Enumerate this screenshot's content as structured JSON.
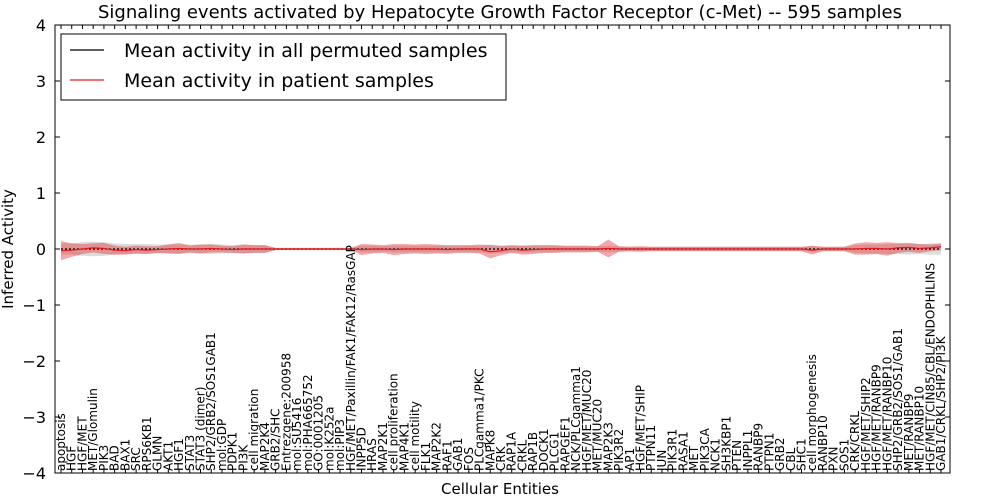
{
  "chart_data": {
    "type": "line",
    "title": "Signaling events activated by Hepatocyte Growth Factor Receptor (c-Met) -- 595 samples",
    "xlabel": "Cellular Entities",
    "ylabel": "Inferred Activity",
    "ylim": [
      -4,
      4
    ],
    "yticks": [
      "4",
      "3",
      "2",
      "1",
      "0",
      "−1",
      "−2",
      "−3",
      "−4"
    ],
    "ytick_values": [
      4,
      3,
      2,
      1,
      0,
      -1,
      -2,
      -3,
      -4
    ],
    "legend": {
      "position": "top-left",
      "entries": [
        {
          "label": "Mean activity in all permuted samples",
          "color": "#000000"
        },
        {
          "label": "Mean activity in patient samples",
          "color": "#e31a1c"
        }
      ]
    },
    "categories": [
      "apoptosis",
      "HGF",
      "HGF/MET",
      "MET/Glomulin",
      "PIK3",
      "BAD",
      "BAX1",
      "SRC",
      "RPS6KB1",
      "GLMN",
      "AKT1",
      "HGF1",
      "STAT3",
      "STAT3 (dimer)",
      "SHP2/GRB2/SOS1GAB1",
      "mol:GDP",
      "PDPK1",
      "PI3K",
      "cell migration",
      "MAP2K4",
      "GRB2/SHC",
      "Entrezgene:200958",
      "mol:SU5416",
      "mol:PHA665752",
      "GO:0001205",
      "mol:K252a",
      "mol:PIP3",
      "HGF/MET/Paxillin/FAK1/FAK12/RasGAP",
      "INPP5D",
      "HRAS",
      "MAP2K1",
      "cell proliferation",
      "MAP4K1",
      "cell motility",
      "FLK1",
      "MAP2K2",
      "RAF1",
      "GAB1",
      "FOS",
      "PLCgamma1/PKC",
      "MAPK8",
      "CRK",
      "RAP1A",
      "CRKL",
      "RAP1B",
      "DOCK1",
      "PLCG1",
      "RAPGEF1",
      "NCK/PLCgamma1",
      "HGF/MET/MUC20",
      "MET/MUC20",
      "MAP2K3",
      "PIK3R2",
      "AP1",
      "HGF/MET/SHIP",
      "PTPN11",
      "JUN",
      "PIK3R1",
      "RASA1",
      "MET",
      "PIK3CA",
      "NCK1",
      "SH3KBP1",
      "PTEN",
      "INPPL1",
      "RANBP9",
      "PTPN1",
      "GRB2",
      "CBL",
      "SHC1",
      "cell morphogenesis",
      "RANBP10",
      "PXN",
      "SOS1",
      "CRK/CRKL",
      "HGF/MET/SHIP2",
      "HGF/MET/RANBP9",
      "HGF/MET/RANBP10",
      "SHP2/GRB2/SOS1/GAB1",
      "MET/RANBP9",
      "MET/RANBP10",
      "HGF/MET/CIN85/CBL/ENDOPHILINS",
      "GAB1/CRKL/SHP2/PI3K"
    ],
    "series": [
      {
        "name": "Mean activity in patient samples",
        "color": "#e31a1c",
        "values": [
          -0.03,
          -0.02,
          0.0,
          0.02,
          0.01,
          -0.02,
          -0.03,
          -0.01,
          -0.02,
          -0.01,
          0.0,
          0.01,
          0.0,
          0.0,
          0.01,
          0.0,
          -0.01,
          0.0,
          0.0,
          0.0,
          0.0,
          0.0,
          0.0,
          0.0,
          0.0,
          0.0,
          0.0,
          0.0,
          -0.01,
          0.0,
          0.0,
          -0.01,
          0.0,
          0.0,
          0.0,
          0.0,
          -0.01,
          0.0,
          0.0,
          0.0,
          -0.05,
          -0.03,
          0.0,
          -0.02,
          -0.01,
          0.0,
          0.0,
          0.0,
          0.0,
          0.0,
          0.0,
          0.01,
          0.0,
          0.0,
          0.0,
          0.0,
          0.0,
          0.0,
          0.0,
          0.0,
          0.0,
          0.0,
          0.0,
          0.0,
          0.0,
          0.0,
          0.0,
          0.0,
          0.0,
          0.0,
          -0.02,
          0.0,
          0.0,
          0.0,
          0.0,
          0.01,
          0.01,
          0.0,
          0.02,
          0.03,
          0.01,
          0.02,
          0.04
        ],
        "band_half_width": [
          0.17,
          0.12,
          0.09,
          0.08,
          0.1,
          0.08,
          0.07,
          0.07,
          0.07,
          0.06,
          0.08,
          0.1,
          0.06,
          0.08,
          0.07,
          0.06,
          0.06,
          0.08,
          0.07,
          0.07,
          0.02,
          0.02,
          0.02,
          0.02,
          0.02,
          0.02,
          0.02,
          0.02,
          0.1,
          0.08,
          0.07,
          0.1,
          0.09,
          0.08,
          0.09,
          0.08,
          0.08,
          0.07,
          0.07,
          0.08,
          0.12,
          0.08,
          0.07,
          0.08,
          0.08,
          0.07,
          0.07,
          0.06,
          0.06,
          0.06,
          0.05,
          0.16,
          0.05,
          0.04,
          0.05,
          0.04,
          0.04,
          0.04,
          0.04,
          0.04,
          0.04,
          0.04,
          0.04,
          0.04,
          0.04,
          0.04,
          0.04,
          0.04,
          0.04,
          0.04,
          0.08,
          0.04,
          0.04,
          0.04,
          0.1,
          0.11,
          0.1,
          0.12,
          0.09,
          0.08,
          0.08,
          0.06,
          0.06
        ]
      },
      {
        "name": "Mean activity in all permuted samples",
        "color": "#000000",
        "values": [
          0.0,
          0.0,
          0.0,
          0.0,
          0.0,
          0.0,
          0.0,
          0.0,
          0.0,
          0.0,
          0.0,
          0.0,
          0.0,
          0.0,
          0.0,
          0.0,
          0.0,
          0.0,
          0.0,
          0.0,
          0.0,
          0.0,
          0.0,
          0.0,
          0.0,
          0.0,
          0.0,
          0.0,
          0.0,
          0.0,
          0.0,
          0.0,
          0.0,
          0.0,
          0.0,
          0.0,
          0.0,
          0.0,
          0.0,
          0.0,
          0.0,
          0.0,
          0.0,
          0.0,
          0.0,
          0.0,
          0.0,
          0.0,
          0.0,
          0.0,
          0.0,
          0.0,
          0.0,
          0.0,
          0.0,
          0.0,
          0.0,
          0.0,
          0.0,
          0.0,
          0.0,
          0.0,
          0.0,
          0.0,
          0.0,
          0.0,
          0.0,
          0.0,
          0.0,
          0.0,
          0.0,
          0.0,
          0.0,
          0.0,
          0.0,
          0.0,
          0.0,
          0.0,
          0.0,
          0.0,
          0.0,
          0.0,
          0.0
        ],
        "band_half_width": [
          0.1,
          0.1,
          0.12,
          0.13,
          0.12,
          0.1,
          0.09,
          0.09,
          0.09,
          0.08,
          0.08,
          0.08,
          0.08,
          0.08,
          0.09,
          0.08,
          0.07,
          0.08,
          0.07,
          0.07,
          0.02,
          0.02,
          0.02,
          0.02,
          0.02,
          0.02,
          0.02,
          0.02,
          0.06,
          0.06,
          0.05,
          0.06,
          0.06,
          0.06,
          0.06,
          0.06,
          0.06,
          0.06,
          0.06,
          0.06,
          0.08,
          0.07,
          0.06,
          0.06,
          0.06,
          0.06,
          0.06,
          0.05,
          0.05,
          0.05,
          0.05,
          0.06,
          0.05,
          0.04,
          0.04,
          0.04,
          0.04,
          0.04,
          0.04,
          0.04,
          0.04,
          0.04,
          0.04,
          0.04,
          0.04,
          0.04,
          0.04,
          0.04,
          0.04,
          0.04,
          0.05,
          0.04,
          0.04,
          0.04,
          0.07,
          0.08,
          0.08,
          0.09,
          0.09,
          0.1,
          0.09,
          0.1,
          0.1
        ]
      }
    ]
  }
}
